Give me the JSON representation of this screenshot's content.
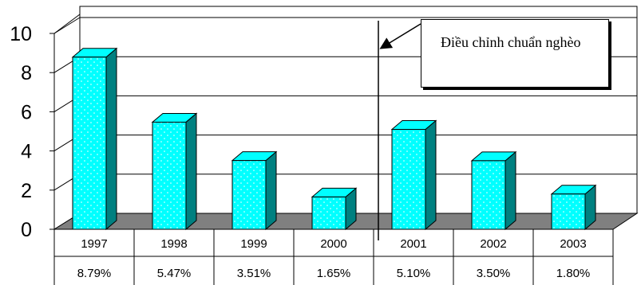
{
  "chart_data": {
    "type": "bar",
    "categories": [
      "1997",
      "1998",
      "1999",
      "2000",
      "2001",
      "2002",
      "2003"
    ],
    "values": [
      8.79,
      5.47,
      3.51,
      1.65,
      5.1,
      3.5,
      1.8
    ],
    "value_labels": [
      "8.79%",
      "5.47%",
      "3.51%",
      "1.65%",
      "5.10%",
      "3.50%",
      "1.80%"
    ],
    "y_ticks": [
      "0",
      "2",
      "4",
      "6",
      "8",
      "10"
    ],
    "ylim": [
      0,
      10
    ],
    "grid": true,
    "bar_color": "#00ffff",
    "bar_side_color": "#008080",
    "floor_color": "#808080",
    "annotation": "Điều chỉnh chuẩn nghèo",
    "annotation_between": [
      "2000",
      "2001"
    ]
  }
}
